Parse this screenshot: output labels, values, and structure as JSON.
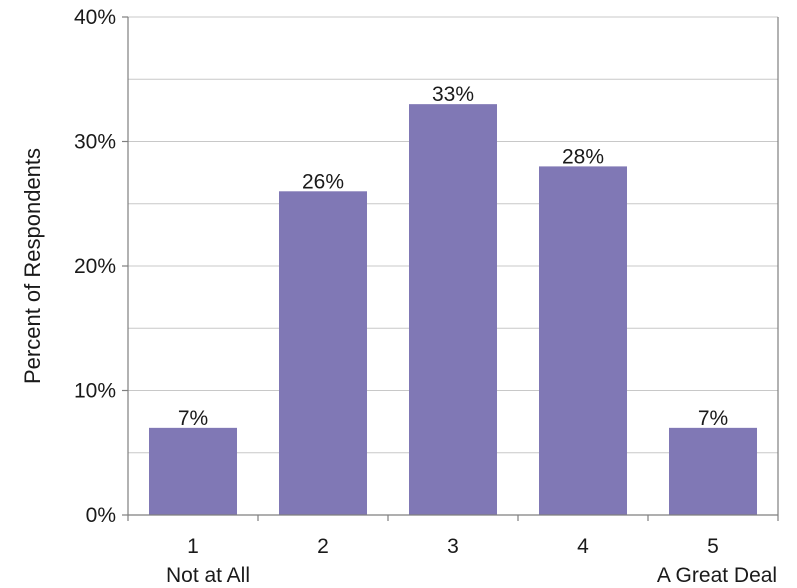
{
  "chart_data": {
    "type": "bar",
    "categories": [
      "1",
      "2",
      "3",
      "4",
      "5"
    ],
    "category_sublabels": [
      "Not at All",
      "",
      "",
      "",
      "A Great Deal"
    ],
    "values": [
      7,
      26,
      33,
      28,
      7
    ],
    "data_labels": [
      "7%",
      "26%",
      "33%",
      "28%",
      "7%"
    ],
    "y_ticks": [
      0,
      10,
      20,
      30,
      40
    ],
    "y_tick_labels": [
      "0%",
      "10%",
      "20%",
      "30%",
      "40%"
    ],
    "ylabel": "Percent of Respondents",
    "ylim": [
      0,
      40
    ],
    "grid": true,
    "minor_grid_step": 5,
    "legend": "none",
    "colors": {
      "bar": "#8078b5",
      "grid": "#c8c8c8",
      "axis": "#7f7f7f"
    }
  }
}
